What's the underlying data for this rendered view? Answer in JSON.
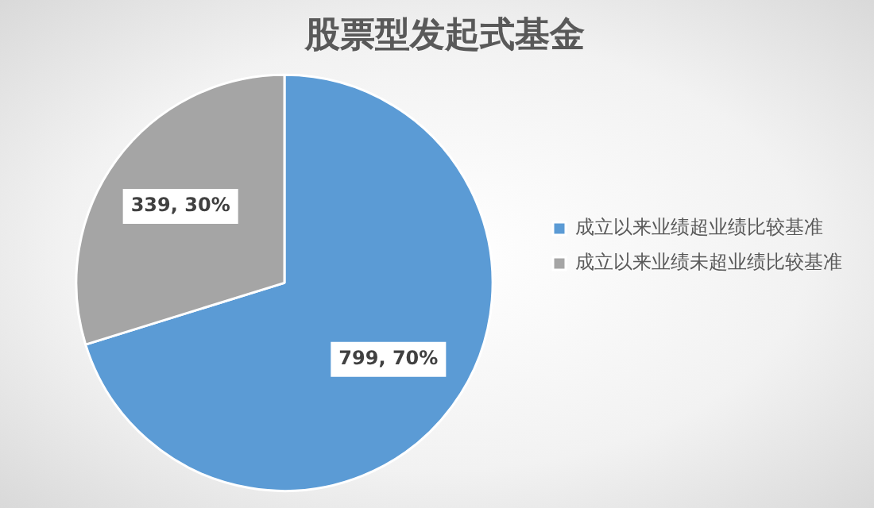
{
  "chart_data": {
    "type": "pie",
    "title": "股票型发起式基金",
    "categories": [
      "成立以来业绩超业绩比较基准",
      "成立以来业绩未超业绩比较基准"
    ],
    "values": [
      799,
      339
    ],
    "colors": [
      "#5b9bd5",
      "#a5a5a5"
    ],
    "value_labels": [
      "799, 70%",
      "339, 30%"
    ],
    "legend": "right"
  }
}
